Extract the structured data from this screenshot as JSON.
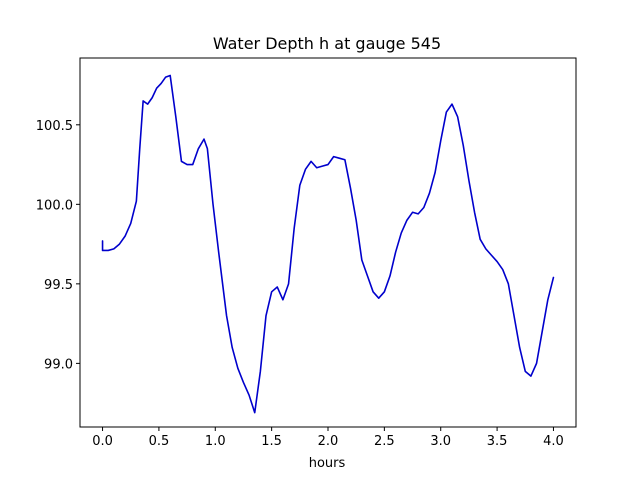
{
  "chart_data": {
    "type": "line",
    "title": "Water Depth h at gauge 545",
    "xlabel": "hours",
    "ylabel": "",
    "xlim": [
      -0.2,
      4.2
    ],
    "ylim": [
      98.6,
      100.92
    ],
    "xticks": [
      0.0,
      0.5,
      1.0,
      1.5,
      2.0,
      2.5,
      3.0,
      3.5,
      4.0
    ],
    "xtick_labels": [
      "0.0",
      "0.5",
      "1.0",
      "1.5",
      "2.0",
      "2.5",
      "3.0",
      "3.5",
      "4.0"
    ],
    "yticks": [
      99.0,
      99.5,
      100.0,
      100.5
    ],
    "ytick_labels": [
      "99.0",
      "99.5",
      "100.0",
      "100.5"
    ],
    "grid": false,
    "colors": {
      "line": "#0000cc"
    },
    "series": [
      {
        "x": [
          0.0,
          0.0,
          0.05,
          0.1,
          0.15,
          0.2,
          0.25,
          0.3,
          0.33,
          0.36,
          0.4,
          0.44,
          0.48,
          0.52,
          0.56,
          0.6,
          0.65,
          0.7,
          0.75,
          0.8,
          0.85,
          0.9,
          0.93,
          0.98,
          1.03,
          1.1,
          1.15,
          1.2,
          1.25,
          1.3,
          1.35,
          1.4,
          1.45,
          1.5,
          1.55,
          1.6,
          1.65,
          1.7,
          1.75,
          1.8,
          1.85,
          1.9,
          1.95,
          2.0,
          2.05,
          2.1,
          2.15,
          2.2,
          2.25,
          2.3,
          2.35,
          2.4,
          2.45,
          2.5,
          2.55,
          2.6,
          2.65,
          2.7,
          2.75,
          2.8,
          2.85,
          2.9,
          2.95,
          3.0,
          3.05,
          3.1,
          3.15,
          3.2,
          3.25,
          3.3,
          3.35,
          3.4,
          3.45,
          3.5,
          3.55,
          3.6,
          3.65,
          3.7,
          3.75,
          3.8,
          3.85,
          3.9,
          3.95,
          4.0
        ],
        "y": [
          99.77,
          99.71,
          99.71,
          99.72,
          99.75,
          99.8,
          99.88,
          100.02,
          100.35,
          100.65,
          100.63,
          100.67,
          100.73,
          100.76,
          100.8,
          100.81,
          100.55,
          100.27,
          100.25,
          100.25,
          100.35,
          100.41,
          100.35,
          100.0,
          99.7,
          99.3,
          99.1,
          98.97,
          98.88,
          98.8,
          98.69,
          98.95,
          99.3,
          99.45,
          99.48,
          99.4,
          99.5,
          99.85,
          100.12,
          100.22,
          100.27,
          100.23,
          100.24,
          100.25,
          100.3,
          100.29,
          100.28,
          100.1,
          99.9,
          99.65,
          99.55,
          99.45,
          99.41,
          99.45,
          99.55,
          99.7,
          99.82,
          99.9,
          99.95,
          99.94,
          99.98,
          100.07,
          100.2,
          100.4,
          100.58,
          100.63,
          100.55,
          100.37,
          100.15,
          99.95,
          99.78,
          99.72,
          99.68,
          99.64,
          99.59,
          99.5,
          99.3,
          99.1,
          98.95,
          98.92,
          99.0,
          99.2,
          99.4,
          99.54
        ]
      }
    ]
  }
}
